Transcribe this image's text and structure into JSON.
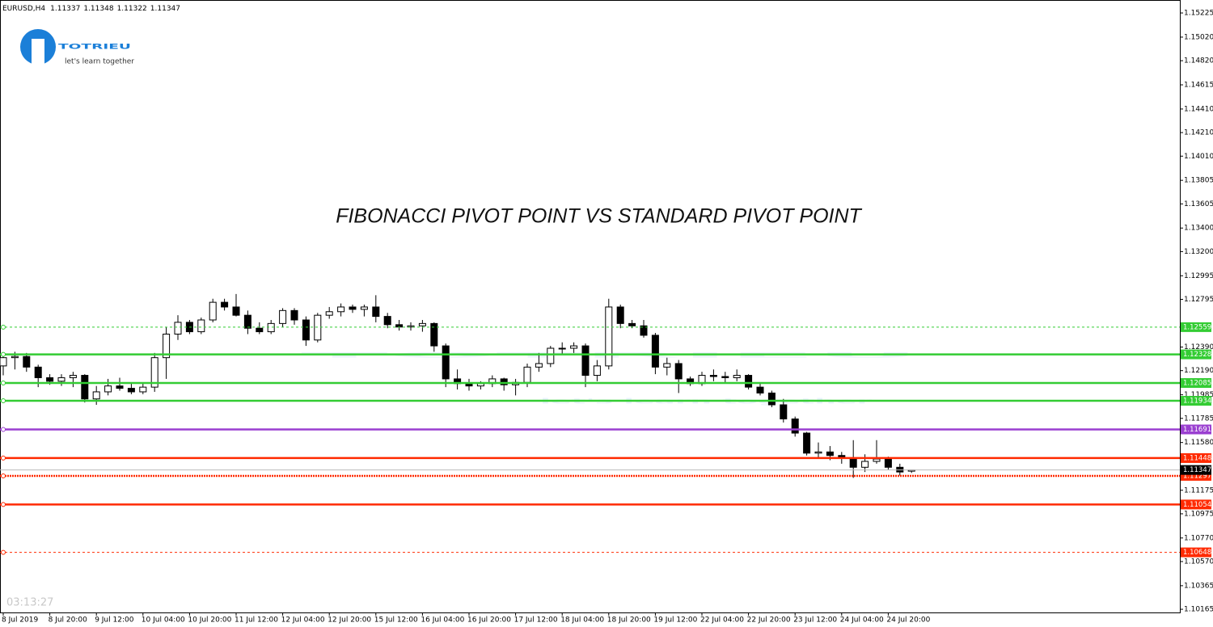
{
  "chart_data": {
    "type": "candlestick",
    "symbol": "EURUSD,H4",
    "title": "FIBONACCI PIVOT POINT VS STANDARD PIVOT POINT",
    "clock": "03:13:27",
    "brand": {
      "name": "TOTRIEU",
      "tagline": "let's learn together"
    },
    "categories": [
      "8 Jul 2019",
      null,
      null,
      null,
      "8 Jul 20:00",
      null,
      null,
      null,
      "9 Jul 12:00",
      null,
      null,
      null,
      "10 Jul 04:00",
      null,
      null,
      null,
      "10 Jul 20:00",
      null,
      null,
      null,
      "11 Jul 12:00",
      null,
      null,
      null,
      "12 Jul 04:00",
      null,
      null,
      null,
      "12 Jul 20:00",
      null,
      null,
      null,
      "15 Jul 12:00",
      null,
      null,
      null,
      "16 Jul 04:00",
      null,
      null,
      null,
      "16 Jul 20:00",
      null,
      null,
      null,
      "17 Jul 12:00",
      null,
      null,
      null,
      "18 Jul 04:00",
      null,
      null,
      null,
      "18 Jul 20:00",
      null,
      null,
      null,
      "19 Jul 12:00",
      null,
      null,
      null,
      "22 Jul 04:00",
      null,
      null,
      null,
      "22 Jul 20:00",
      null,
      null,
      null,
      "23 Jul 12:00",
      null,
      null,
      null,
      "24 Jul 04:00",
      null,
      null,
      null,
      "24 Jul 20:00",
      null,
      null
    ],
    "open": [
      1.1223,
      1.123,
      1.1231,
      1.1222,
      1.1213,
      1.121,
      1.1213,
      1.1215,
      1.1195,
      1.1201,
      1.1206,
      1.1204,
      1.1201,
      1.1205,
      1.123,
      1.125,
      1.126,
      1.1252,
      1.1262,
      1.1277,
      1.1273,
      1.1266,
      1.1255,
      1.1252,
      1.1259,
      1.127,
      1.1262,
      1.1245,
      1.1266,
      1.1269,
      1.1273,
      1.1271,
      1.1273,
      1.1265,
      1.1258,
      1.1256,
      1.1257,
      1.1259,
      1.124,
      1.1212,
      1.1208,
      1.1206,
      1.1208,
      1.1212,
      1.1207,
      1.1209,
      1.1222,
      1.1225,
      1.1238,
      1.1238,
      1.124,
      1.1215,
      1.1223,
      1.1273,
      1.1259,
      1.1257,
      1.1249,
      1.1222,
      1.1225,
      1.1212,
      1.1208,
      1.1215,
      1.1214,
      1.1213,
      1.1215,
      1.1205,
      1.12,
      1.119,
      1.1178,
      1.1166,
      1.1149,
      1.115,
      1.1147,
      1.1145,
      1.1137,
      1.1142,
      1.1144,
      1.1137,
      1.11337
    ],
    "high": [
      1.1232,
      1.1235,
      1.1234,
      1.1224,
      1.1216,
      1.1216,
      1.1218,
      1.1216,
      1.1206,
      1.1212,
      1.1213,
      1.1208,
      1.1208,
      1.1234,
      1.1256,
      1.1266,
      1.1262,
      1.1264,
      1.128,
      1.128,
      1.1284,
      1.127,
      1.126,
      1.1262,
      1.1272,
      1.1272,
      1.1265,
      1.1268,
      1.1273,
      1.1276,
      1.1275,
      1.1275,
      1.1283,
      1.1268,
      1.1262,
      1.126,
      1.1262,
      1.126,
      1.1242,
      1.122,
      1.1212,
      1.121,
      1.1215,
      1.1213,
      1.1212,
      1.1225,
      1.1234,
      1.124,
      1.1243,
      1.1243,
      1.1242,
      1.1228,
      1.128,
      1.1275,
      1.1262,
      1.1262,
      1.1251,
      1.123,
      1.1228,
      1.1214,
      1.1218,
      1.122,
      1.1218,
      1.122,
      1.1216,
      1.1208,
      1.1202,
      1.1195,
      1.118,
      1.1167,
      1.1158,
      1.1155,
      1.115,
      1.116,
      1.1148,
      1.116,
      1.1146,
      1.114,
      1.11348
    ],
    "low": [
      1.1215,
      1.122,
      1.1218,
      1.1205,
      1.1207,
      1.1206,
      1.1205,
      1.1192,
      1.119,
      1.1198,
      1.1202,
      1.1199,
      1.1199,
      1.1201,
      1.1212,
      1.1245,
      1.125,
      1.125,
      1.126,
      1.127,
      1.1265,
      1.125,
      1.125,
      1.125,
      1.1256,
      1.1258,
      1.124,
      1.1243,
      1.1263,
      1.1265,
      1.1268,
      1.1265,
      1.126,
      1.1255,
      1.1253,
      1.1253,
      1.1252,
      1.1235,
      1.1205,
      1.1203,
      1.1202,
      1.1203,
      1.1205,
      1.1202,
      1.1198,
      1.1205,
      1.1218,
      1.1222,
      1.1233,
      1.1234,
      1.1205,
      1.121,
      1.122,
      1.1255,
      1.1255,
      1.1247,
      1.1216,
      1.1215,
      1.12,
      1.1206,
      1.1206,
      1.121,
      1.1208,
      1.121,
      1.1203,
      1.1198,
      1.1188,
      1.1175,
      1.1163,
      1.1147,
      1.1145,
      1.1143,
      1.114,
      1.1128,
      1.1133,
      1.114,
      1.1135,
      1.113,
      1.11322
    ],
    "close": [
      1.123,
      1.1231,
      1.1222,
      1.1213,
      1.121,
      1.1213,
      1.1215,
      1.1195,
      1.1201,
      1.1206,
      1.1204,
      1.1201,
      1.1205,
      1.123,
      1.125,
      1.126,
      1.1252,
      1.1262,
      1.1277,
      1.1273,
      1.1266,
      1.1255,
      1.1252,
      1.1259,
      1.127,
      1.1262,
      1.1245,
      1.1266,
      1.1269,
      1.1273,
      1.1271,
      1.1273,
      1.1265,
      1.1258,
      1.1256,
      1.1257,
      1.1259,
      1.124,
      1.1212,
      1.1208,
      1.1206,
      1.1208,
      1.1212,
      1.1207,
      1.1209,
      1.1222,
      1.1225,
      1.1238,
      1.1238,
      1.124,
      1.1215,
      1.1223,
      1.1273,
      1.1259,
      1.1257,
      1.1249,
      1.1222,
      1.1225,
      1.1212,
      1.1208,
      1.1215,
      1.1214,
      1.1213,
      1.1215,
      1.1205,
      1.12,
      1.119,
      1.1178,
      1.1166,
      1.1149,
      1.115,
      1.1147,
      1.1145,
      1.1137,
      1.1142,
      1.1144,
      1.1137,
      1.1133,
      1.11347
    ],
    "up_color": "#ffffff",
    "down_color": "#000000",
    "ylim": [
      1.10138,
      1.15335
    ],
    "yticks": [
      {
        "value": 1.15225,
        "label": "1.15225"
      },
      {
        "value": 1.1502,
        "label": "1.15020"
      },
      {
        "value": 1.1482,
        "label": "1.14820"
      },
      {
        "value": 1.14615,
        "label": "1.14615"
      },
      {
        "value": 1.1441,
        "label": "1.14410"
      },
      {
        "value": 1.1421,
        "label": "1.14210"
      },
      {
        "value": 1.1401,
        "label": "1.14010"
      },
      {
        "value": 1.13805,
        "label": "1.13805"
      },
      {
        "value": 1.13605,
        "label": "1.13605"
      },
      {
        "value": 1.134,
        "label": "1.13400"
      },
      {
        "value": 1.132,
        "label": "1.13200"
      },
      {
        "value": 1.12995,
        "label": "1.12995"
      },
      {
        "value": 1.12795,
        "label": "1.12795"
      },
      {
        "value": 1.1239,
        "label": "1.12390"
      },
      {
        "value": 1.1219,
        "label": "1.12190"
      },
      {
        "value": 1.11985,
        "label": "1.11985"
      },
      {
        "value": 1.11785,
        "label": "1.11785"
      },
      {
        "value": 1.1158,
        "label": "1.11580"
      },
      {
        "value": 1.11175,
        "label": "1.11175"
      },
      {
        "value": 1.10975,
        "label": "1.10975"
      },
      {
        "value": 1.1077,
        "label": "1.10770"
      },
      {
        "value": 1.1057,
        "label": "1.10570"
      },
      {
        "value": 1.10365,
        "label": "1.10365"
      },
      {
        "value": 1.10165,
        "label": "1.10165"
      }
    ],
    "levels": [
      {
        "value": 1.12559,
        "color": "#33cc33",
        "style": "dashed"
      },
      {
        "value": 1.12328,
        "color": "#33cc33",
        "style": "solid"
      },
      {
        "value": 1.12085,
        "color": "#33cc33",
        "style": "solid"
      },
      {
        "value": 1.11934,
        "color": "#33cc33",
        "style": "solid"
      },
      {
        "value": 1.11691,
        "color": "#9a3fd0",
        "style": "solid"
      },
      {
        "value": 1.11448,
        "color": "#ff2a00",
        "style": "solid"
      },
      {
        "value": 1.11297,
        "color": "#ff2a00",
        "style": "dotted"
      },
      {
        "value": 1.11054,
        "color": "#ff2a00",
        "style": "solid"
      },
      {
        "value": 1.10648,
        "color": "#ff2a00",
        "style": "dashed"
      }
    ]
  }
}
